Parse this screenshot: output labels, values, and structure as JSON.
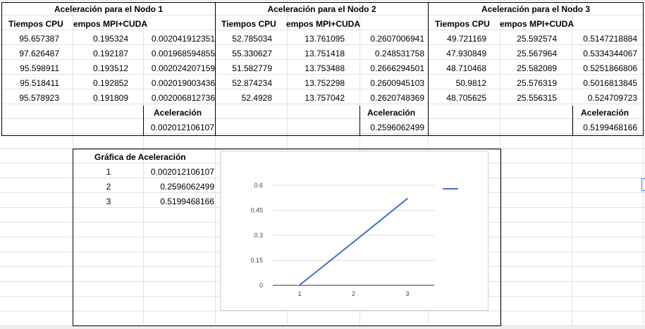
{
  "nodes": [
    {
      "title": "Aceleración para el Nodo 1",
      "col_cpu": "Tiempos CPU",
      "col_mpi": "empos MPI+CUDA",
      "rows": [
        [
          "95.657387",
          "0.195324",
          "0.002041912351"
        ],
        [
          "97.626487",
          "0.192187",
          "0.001968594855"
        ],
        [
          "95.598911",
          "0.193512",
          "0.002024207159"
        ],
        [
          "95.518411",
          "0.192852",
          "0.002019003436"
        ],
        [
          "95.578923",
          "0.191809",
          "0.002006812736"
        ]
      ],
      "accel_label": "Aceleración",
      "accel_value": "0.002012106107"
    },
    {
      "title": "Aceleración para el Nodo 2",
      "col_cpu": "Tiempos CPU",
      "col_mpi": "empos MPI+CUDA",
      "rows": [
        [
          "52.785034",
          "13.761095",
          "0.2607006941"
        ],
        [
          "55.330627",
          "13.751418",
          "0.248531758"
        ],
        [
          "51.582779",
          "13.753488",
          "0.2666294501"
        ],
        [
          "52.874234",
          "13.752298",
          "0.2600945103"
        ],
        [
          "52.4928",
          "13.757042",
          "0.2620748369"
        ]
      ],
      "accel_label": "Aceleración",
      "accel_value": "0.2596062499"
    },
    {
      "title": "Aceleración para el Nodo 3",
      "col_cpu": "Tiempos CPU",
      "col_mpi": "empos MPI+CUDA",
      "rows": [
        [
          "49.721169",
          "25.592574",
          "0.5147218884"
        ],
        [
          "47.930849",
          "25.567964",
          "0.5334344067"
        ],
        [
          "48.710468",
          "25.582089",
          "0.5251866806"
        ],
        [
          "50.9812",
          "25.576319",
          "0.5016813845"
        ],
        [
          "48.705625",
          "25.556315",
          "0.524709723"
        ]
      ],
      "accel_label": "Aceleración",
      "accel_value": "0.5199468166"
    }
  ],
  "summary": {
    "title": "Gráfica de Aceleración",
    "rows": [
      [
        "1",
        "0.002012106107"
      ],
      [
        "2",
        "0.2596062499"
      ],
      [
        "3",
        "0.5199468166"
      ]
    ]
  },
  "chart_data": {
    "type": "line",
    "title": "",
    "xlabel": "",
    "ylabel": "",
    "x": [
      1,
      2,
      3
    ],
    "categories": [
      "1",
      "2",
      "3"
    ],
    "series": [
      {
        "values": [
          0.002012106107,
          0.2596062499,
          0.5199468166
        ],
        "color": "#4472c4"
      }
    ],
    "ylim": [
      0,
      0.6
    ],
    "yticks": [
      "0",
      "0.15",
      "0.3",
      "0.45",
      "0.6"
    ],
    "grid": true,
    "legend_position": "top-right"
  }
}
